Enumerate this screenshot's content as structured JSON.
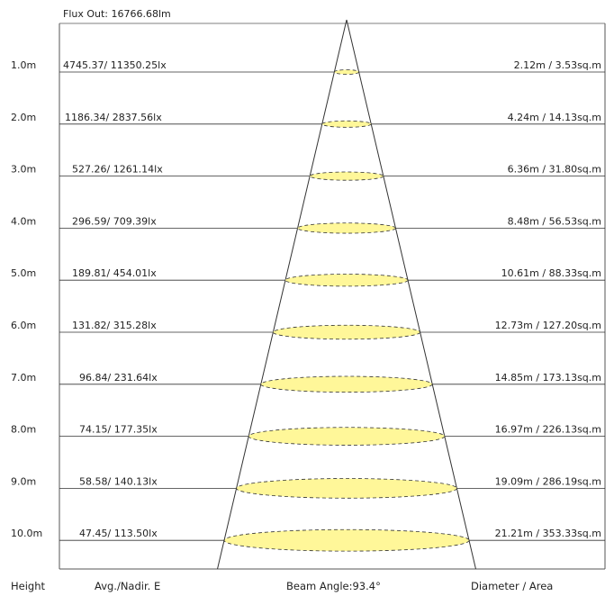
{
  "flux_out": "Flux Out: 16766.68lm",
  "footer": {
    "height": "Height",
    "avg_nadir": "Avg./Nadir. E",
    "beam_angle": "Beam Angle:93.4°",
    "diameter_area": "Diameter / Area"
  },
  "colors": {
    "beam_fill": "#fff799",
    "line": "#333333",
    "frame": "#555555"
  },
  "rows": [
    {
      "height": "1.0m",
      "illuminance": "4745.37/ 11350.25lx",
      "diameter_area": "2.12m / 3.53sq.m",
      "distance": 1.0,
      "diameter": 2.12
    },
    {
      "height": "2.0m",
      "illuminance": "1186.34/ 2837.56lx",
      "diameter_area": "4.24m / 14.13sq.m",
      "distance": 2.0,
      "diameter": 4.24
    },
    {
      "height": "3.0m",
      "illuminance": "527.26/ 1261.14lx",
      "diameter_area": "6.36m / 31.80sq.m",
      "distance": 3.0,
      "diameter": 6.36
    },
    {
      "height": "4.0m",
      "illuminance": "296.59/ 709.39lx",
      "diameter_area": "8.48m / 56.53sq.m",
      "distance": 4.0,
      "diameter": 8.48
    },
    {
      "height": "5.0m",
      "illuminance": "189.81/ 454.01lx",
      "diameter_area": "10.61m / 88.33sq.m",
      "distance": 5.0,
      "diameter": 10.61
    },
    {
      "height": "6.0m",
      "illuminance": "131.82/ 315.28lx",
      "diameter_area": "12.73m / 127.20sq.m",
      "distance": 6.0,
      "diameter": 12.73
    },
    {
      "height": "7.0m",
      "illuminance": "96.84/ 231.64lx",
      "diameter_area": "14.85m / 173.13sq.m",
      "distance": 7.0,
      "diameter": 14.85
    },
    {
      "height": "8.0m",
      "illuminance": "74.15/ 177.35lx",
      "diameter_area": "16.97m / 226.13sq.m",
      "distance": 8.0,
      "diameter": 16.97
    },
    {
      "height": "9.0m",
      "illuminance": "58.58/ 140.13lx",
      "diameter_area": "19.09m / 286.19sq.m",
      "distance": 9.0,
      "diameter": 19.09
    },
    {
      "height": "10.0m",
      "illuminance": "47.45/ 113.50lx",
      "diameter_area": "21.21m / 353.33sq.m",
      "distance": 10.0,
      "diameter": 21.21
    }
  ]
}
